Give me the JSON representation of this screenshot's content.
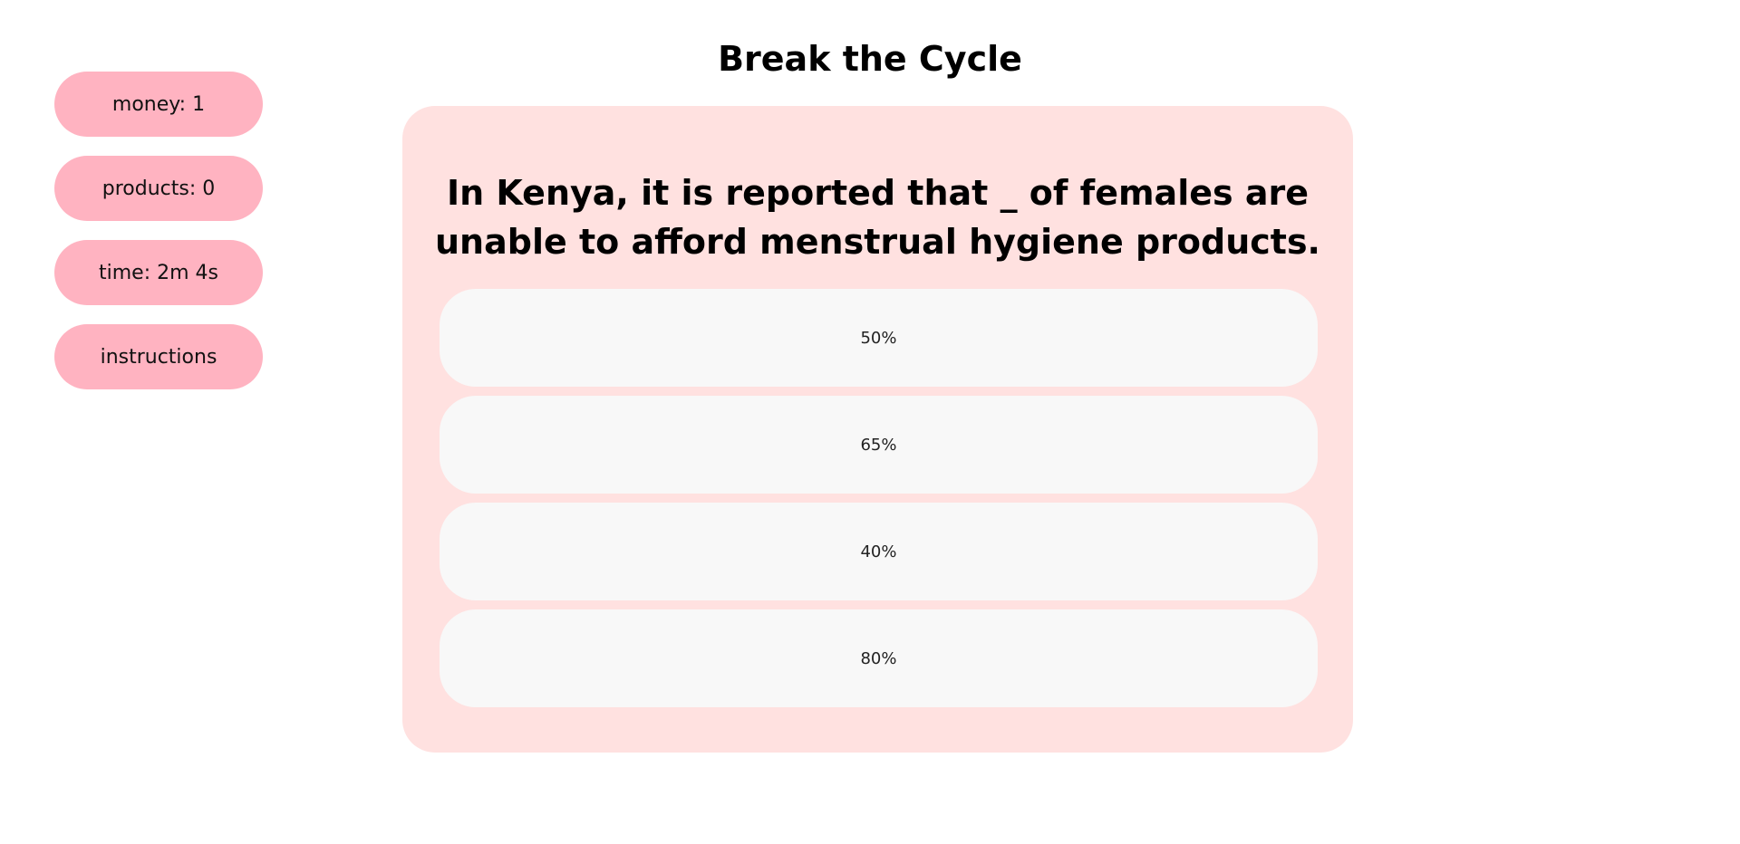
{
  "app": {
    "title": "Break the Cycle"
  },
  "sidebar": {
    "stats": [
      {
        "label": "money: 1"
      },
      {
        "label": "products: 0"
      },
      {
        "label": "time: 2m 4s"
      }
    ],
    "instructions_label": "instructions"
  },
  "quiz": {
    "question": "In Kenya, it is reported that _ of females are unable to afford menstrual hygiene products.",
    "options": [
      {
        "label": "50%"
      },
      {
        "label": "65%"
      },
      {
        "label": "40%"
      },
      {
        "label": "80%"
      }
    ]
  },
  "colors": {
    "pill": "#ffb3c1",
    "card": "#ffe1e0",
    "option": "#f8f8f8",
    "background": "#ffffff"
  }
}
